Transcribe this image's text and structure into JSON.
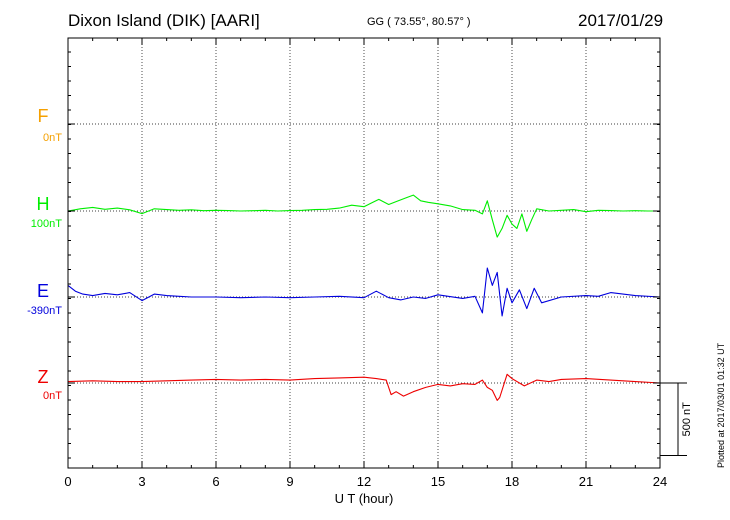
{
  "header": {
    "station": "Dixon Island (DIK)  [AARI]",
    "coords": "GG ( 73.55°,  80.57° )",
    "date": "2017/01/29"
  },
  "footer": {
    "plotted": "Plotted at 2017/03/01 01:32 UT"
  },
  "colors": {
    "F": "#f5a000",
    "H": "#00ee00",
    "E": "#0000dd",
    "Z": "#ee0000",
    "grid": "#000000"
  },
  "chart_data": {
    "type": "line",
    "xlabel": "U T (hour)",
    "xlim": [
      0,
      24
    ],
    "xticks": [
      "0",
      "3",
      "6",
      "9",
      "12",
      "15",
      "18",
      "21",
      "24"
    ],
    "scale_bar_label": "500 nT",
    "scale_bar_nT": 500,
    "series": [
      {
        "name": "F",
        "baseline_label": "0nT",
        "x": [],
        "y": []
      },
      {
        "name": "H",
        "baseline_label": "100nT",
        "x": [
          0,
          0.5,
          1,
          1.5,
          2,
          2.5,
          3,
          3.5,
          4,
          4.5,
          5,
          5.5,
          6,
          6.5,
          7,
          7.5,
          8,
          8.5,
          9,
          9.5,
          10,
          10.5,
          11,
          11.5,
          12,
          12.3,
          12.6,
          13,
          13.3,
          13.7,
          14,
          14.3,
          14.6,
          15,
          15.5,
          16,
          16.5,
          16.8,
          17,
          17.2,
          17.4,
          17.6,
          17.8,
          18,
          18.2,
          18.4,
          18.6,
          18.8,
          19,
          19.5,
          20,
          20.5,
          21,
          21.5,
          22,
          22.5,
          23,
          23.5,
          24
        ],
        "y": [
          0,
          15,
          25,
          12,
          20,
          8,
          -18,
          15,
          10,
          5,
          8,
          2,
          5,
          3,
          0,
          2,
          5,
          0,
          3,
          5,
          10,
          12,
          20,
          40,
          30,
          55,
          80,
          45,
          65,
          90,
          110,
          70,
          60,
          50,
          35,
          10,
          5,
          -20,
          70,
          -60,
          -180,
          -120,
          -30,
          -90,
          -120,
          -20,
          -140,
          -60,
          15,
          0,
          5,
          10,
          -5,
          5,
          3,
          0,
          2,
          0,
          0
        ]
      },
      {
        "name": "E",
        "baseline_label": "-390nT",
        "x": [
          0,
          0.3,
          0.6,
          1,
          1.5,
          2,
          2.5,
          3,
          3.5,
          4,
          4.5,
          5,
          6,
          7,
          8,
          9,
          10,
          11,
          12,
          12.5,
          13,
          13.5,
          14,
          14.5,
          15,
          16,
          16.5,
          16.8,
          17,
          17.2,
          17.4,
          17.6,
          17.8,
          18,
          18.3,
          18.6,
          18.9,
          19.2,
          20,
          21,
          21.5,
          22,
          23,
          24
        ],
        "y": [
          80,
          40,
          20,
          10,
          25,
          15,
          30,
          -25,
          20,
          10,
          5,
          0,
          0,
          -5,
          0,
          -5,
          0,
          5,
          -5,
          40,
          -5,
          -20,
          0,
          -10,
          15,
          -10,
          5,
          -110,
          200,
          80,
          170,
          -130,
          60,
          -40,
          50,
          -80,
          60,
          -40,
          0,
          10,
          5,
          30,
          10,
          0
        ]
      },
      {
        "name": "Z",
        "baseline_label": "0nT",
        "x": [
          0,
          1,
          2,
          3,
          4,
          5,
          6,
          7,
          8,
          9,
          10,
          11,
          12,
          12.5,
          12.9,
          13.1,
          13.3,
          13.6,
          14,
          14.5,
          15,
          15.5,
          16,
          16.5,
          16.8,
          17,
          17.2,
          17.4,
          17.5,
          17.8,
          18,
          18.5,
          19,
          19.5,
          20,
          21,
          22,
          23,
          24
        ],
        "y": [
          10,
          15,
          10,
          10,
          15,
          20,
          25,
          20,
          25,
          20,
          30,
          35,
          40,
          30,
          20,
          -80,
          -60,
          -90,
          -60,
          -30,
          -10,
          -20,
          -5,
          -10,
          20,
          -30,
          -50,
          -120,
          -100,
          60,
          30,
          -20,
          20,
          10,
          25,
          30,
          20,
          10,
          0
        ]
      }
    ]
  }
}
